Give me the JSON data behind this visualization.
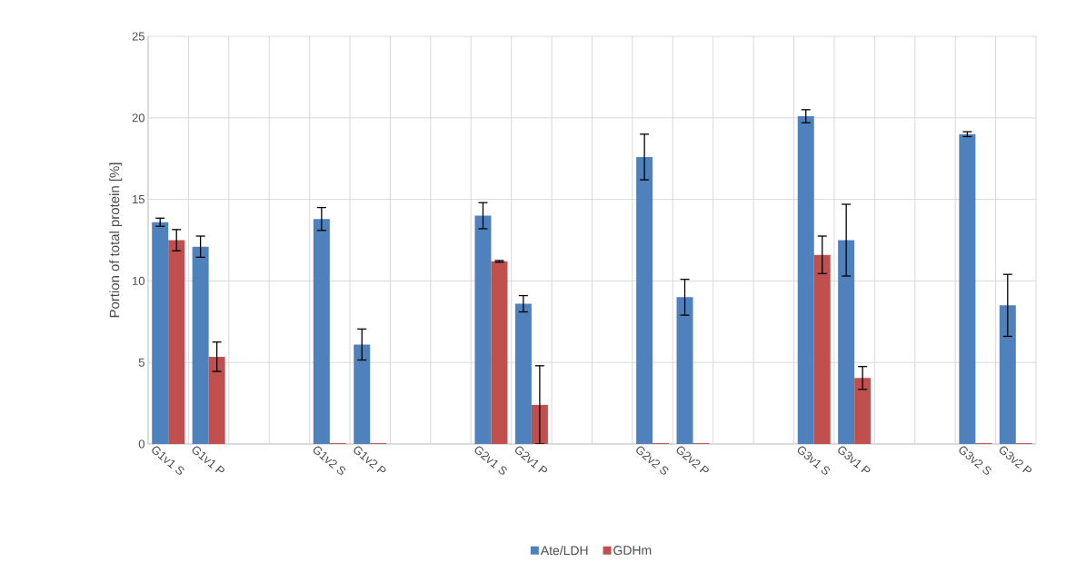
{
  "chart_data": {
    "type": "bar",
    "ylabel": "Portion of total protein [%]",
    "categories": [
      "G1v1 S",
      "G1v1 P",
      null,
      null,
      "G1v2 S",
      "G1v2 P",
      null,
      null,
      "G2v1 S",
      "G2v1 P",
      null,
      null,
      "G2v2 S",
      "G2v2 P",
      null,
      null,
      "G3v1 S",
      "G3v1 P",
      null,
      null,
      "G3v2 S",
      "G3v2 P"
    ],
    "series": [
      {
        "name": "Ate/LDH",
        "color": "#4f81bd",
        "values": [
          13.6,
          12.1,
          null,
          null,
          13.8,
          6.1,
          null,
          null,
          14.0,
          8.6,
          null,
          null,
          17.6,
          9.0,
          null,
          null,
          20.1,
          12.5,
          null,
          null,
          19.0,
          8.5
        ],
        "errors": [
          0.25,
          0.65,
          null,
          null,
          0.7,
          0.95,
          null,
          null,
          0.8,
          0.5,
          null,
          null,
          1.4,
          1.1,
          null,
          null,
          0.4,
          2.2,
          null,
          null,
          0.15,
          1.9
        ]
      },
      {
        "name": "GDHm",
        "color": "#c0504d",
        "values": [
          12.5,
          5.35,
          null,
          null,
          0.05,
          0.05,
          null,
          null,
          11.2,
          2.4,
          null,
          null,
          0.05,
          0.05,
          null,
          null,
          11.6,
          4.05,
          null,
          null,
          0.05,
          0.05
        ],
        "errors": [
          0.65,
          0.9,
          null,
          null,
          null,
          null,
          null,
          null,
          0.05,
          2.4,
          null,
          null,
          null,
          null,
          null,
          null,
          1.15,
          0.7,
          null,
          null,
          null,
          null
        ]
      }
    ],
    "ylim": [
      0,
      25
    ],
    "yticks": [
      0,
      5,
      10,
      15,
      20,
      25
    ],
    "grid": true,
    "legend": "bottom"
  }
}
